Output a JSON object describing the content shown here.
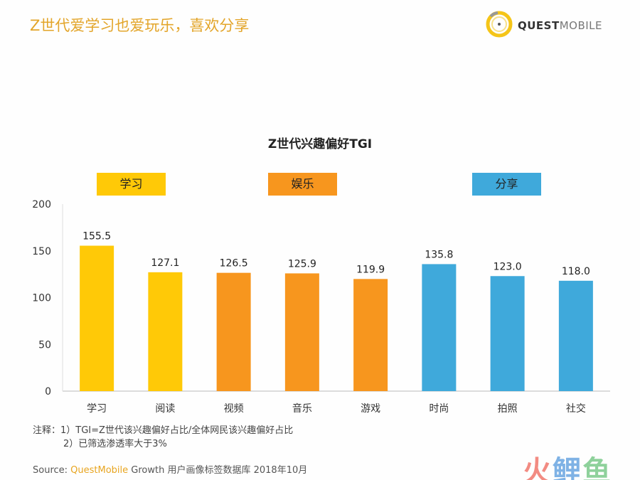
{
  "header": {
    "title": "Z世代爱学习也爱玩乐，喜欢分享",
    "logo_text_bold": "QUEST",
    "logo_text_light": "MOBILE"
  },
  "groups": [
    {
      "label": "学习",
      "color": "#FFC907"
    },
    {
      "label": "娱乐",
      "color": "#F7961E"
    },
    {
      "label": "分享",
      "color": "#3FA9DB"
    }
  ],
  "chart_data": {
    "type": "bar",
    "title": "Z世代兴趣偏好TGI",
    "categories": [
      "学习",
      "阅读",
      "视频",
      "音乐",
      "游戏",
      "时尚",
      "拍照",
      "社交"
    ],
    "values": [
      155.5,
      127.1,
      126.5,
      125.9,
      119.9,
      135.8,
      123.0,
      118.0
    ],
    "value_labels": [
      "155.5",
      "127.1",
      "126.5",
      "125.9",
      "119.9",
      "135.8",
      "123.0",
      "118.0"
    ],
    "colors": [
      "#FFC907",
      "#FFC907",
      "#F7961E",
      "#F7961E",
      "#F7961E",
      "#3FA9DB",
      "#3FA9DB",
      "#3FA9DB"
    ],
    "ylim": [
      0,
      200
    ],
    "yticks": [
      "0",
      "50",
      "100",
      "150",
      "200"
    ],
    "grid": false,
    "xlabel": "",
    "ylabel": ""
  },
  "notes": {
    "line1": "注释：1）TGI=Z世代该兴趣偏好占比/全体网民该兴趣偏好占比",
    "line2": "2）已筛选渗透率大于3%"
  },
  "source": {
    "prefix": "Source:  ",
    "brand": "QuestMobile",
    "rest": " Growth 用户画像标签数据库 2018年10月"
  },
  "watermark": {
    "chars": [
      "火",
      "鲤",
      "鱼"
    ],
    "colors": [
      "#F28B82",
      "#7FB2E5",
      "#8ED19B"
    ]
  }
}
